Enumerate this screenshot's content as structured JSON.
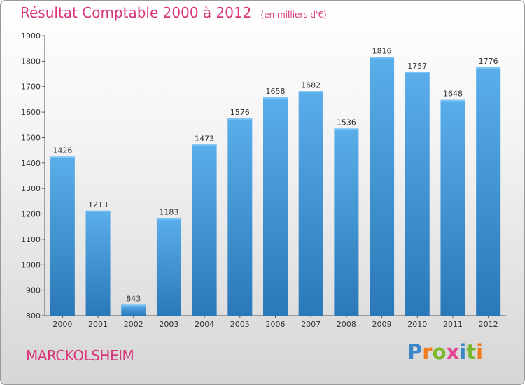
{
  "chart_data": {
    "type": "bar",
    "title": "Résultat Comptable 2000 à 2012",
    "unit_note": "(en milliers d'€)",
    "categories": [
      "2000",
      "2001",
      "2002",
      "2003",
      "2004",
      "2005",
      "2006",
      "2007",
      "2008",
      "2009",
      "2010",
      "2011",
      "2012"
    ],
    "values": [
      1426,
      1213,
      843,
      1183,
      1473,
      1576,
      1658,
      1682,
      1536,
      1816,
      1757,
      1648,
      1776
    ],
    "ylim": [
      800,
      1900
    ],
    "yticks": [
      800,
      900,
      1000,
      1100,
      1200,
      1300,
      1400,
      1500,
      1600,
      1700,
      1800,
      1900
    ],
    "xlabel": "",
    "ylabel": "",
    "grid": false,
    "bar_color": "#4c9de0"
  },
  "commune": "MARCKOLSHEIM",
  "brand": {
    "name": "Proxiti",
    "letters": [
      {
        "ch": "P",
        "color": "#3a86c8"
      },
      {
        "ch": "r",
        "color": "#f07c1c"
      },
      {
        "ch": "o",
        "color": "#79b82c"
      },
      {
        "ch": "x",
        "color": "#e64390"
      },
      {
        "ch": "i",
        "color": "#3a86c8"
      },
      {
        "ch": "t",
        "color": "#79b82c"
      },
      {
        "ch": "i",
        "color": "#f07c1c"
      }
    ]
  },
  "colors": {
    "accent": "#d8357a",
    "frame_border": "#9a9a9a"
  }
}
